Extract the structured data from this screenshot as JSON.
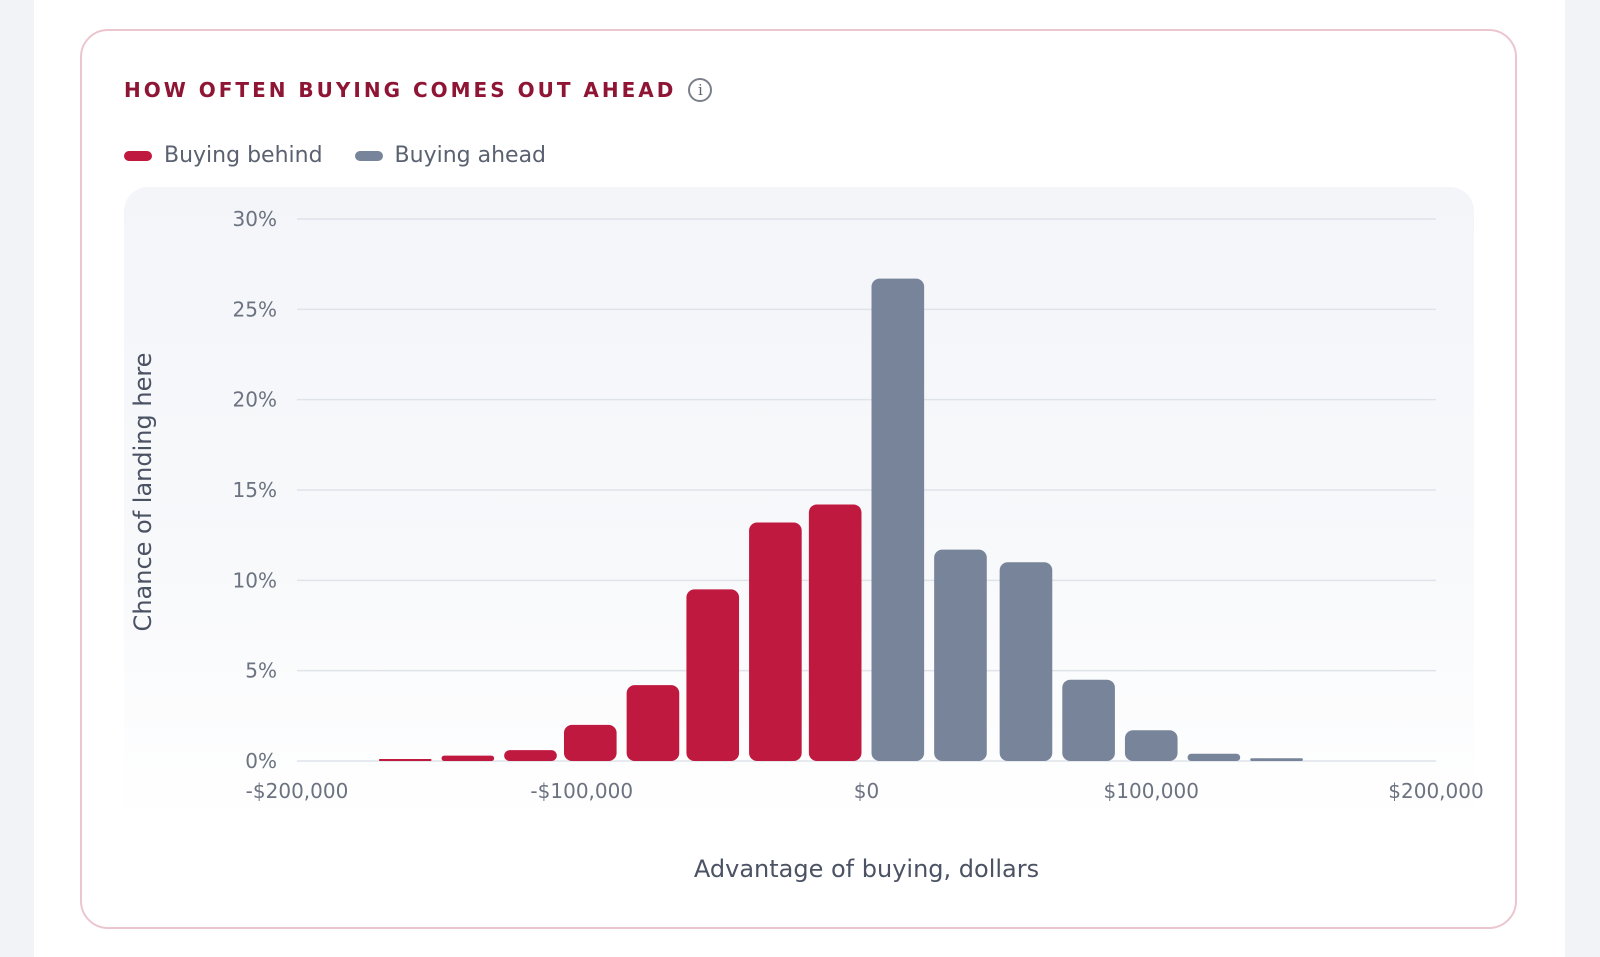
{
  "card": {
    "title": "HOW OFTEN BUYING COMES OUT AHEAD",
    "info_icon_glyph": "i",
    "info_icon": "info-icon"
  },
  "legend": {
    "items": [
      {
        "label": "Buying behind",
        "color": "#c0193f"
      },
      {
        "label": "Buying ahead",
        "color": "#77849a"
      }
    ]
  },
  "colors": {
    "behind": "#c0193f",
    "ahead": "#77849a",
    "title": "#8e1534",
    "border": "#ecc6cf",
    "grid": "#dfe3ea"
  },
  "chart_data": {
    "type": "bar",
    "title": "HOW OFTEN BUYING COMES OUT AHEAD",
    "xlabel": "Advantage of buying, dollars",
    "ylabel": "Chance of landing here",
    "xlim": [
      -200000,
      200000
    ],
    "ylim": [
      0,
      30
    ],
    "y_ticks": [
      "0%",
      "5%",
      "10%",
      "15%",
      "20%",
      "25%",
      "30%"
    ],
    "y_tick_values": [
      0,
      5,
      10,
      15,
      20,
      25,
      30
    ],
    "x_ticks": [
      "-$200,000",
      "-$100,000",
      "$0",
      "$100,000",
      "$200,000"
    ],
    "x_tick_values": [
      -200000,
      -100000,
      0,
      100000,
      200000
    ],
    "grid": true,
    "legend_position": "top-left",
    "bin_width": 22000,
    "series": [
      {
        "name": "Buying behind",
        "x": [
          -162000,
          -140000,
          -118000,
          -97000,
          -75000,
          -54000,
          -32000,
          -11000
        ],
        "values": [
          0.1,
          0.3,
          0.6,
          2.0,
          4.2,
          9.5,
          13.2,
          14.2
        ]
      },
      {
        "name": "Buying ahead",
        "x": [
          11000,
          33000,
          56000,
          78000,
          100000,
          122000,
          144000
        ],
        "values": [
          26.7,
          11.7,
          11.0,
          4.5,
          1.7,
          0.4,
          0.15
        ]
      }
    ]
  }
}
